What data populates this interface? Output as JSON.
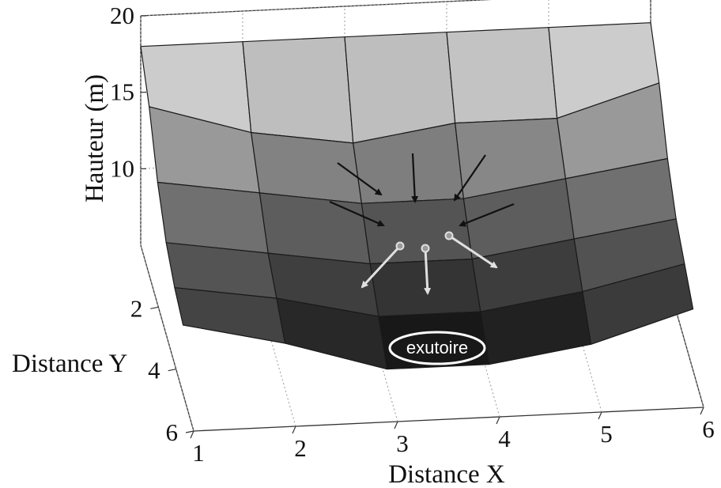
{
  "chart_data": {
    "type": "surface",
    "title": "",
    "xlabel": "Distance X",
    "ylabel": "Distance Y",
    "zlabel": "Hauteur (m)",
    "x_ticks": [
      "1",
      "2",
      "3",
      "4",
      "5",
      "6"
    ],
    "y_ticks": [
      "2",
      "4",
      "6"
    ],
    "z_ticks": [
      "10",
      "15",
      "20"
    ],
    "xlim": [
      1,
      6
    ],
    "ylim": [
      0,
      6
    ],
    "zlim": [
      5,
      20
    ],
    "grid": true,
    "x": [
      1,
      2,
      3,
      4,
      5,
      6
    ],
    "y": [
      1,
      2,
      3,
      4,
      5,
      6
    ],
    "z": [
      [
        18,
        18,
        18,
        18,
        18,
        18
      ],
      [
        16,
        14,
        13,
        14,
        14,
        16
      ],
      [
        13,
        12,
        11,
        11,
        12,
        13
      ],
      [
        11,
        10,
        9,
        9,
        10,
        11
      ],
      [
        10,
        9,
        7.5,
        7.5,
        8.5,
        10
      ],
      [
        9.5,
        8,
        6,
        6,
        7,
        9
      ]
    ],
    "annotations": {
      "outlet_label": "exutoire",
      "inflow_arrows": 5,
      "outflow_arrows": 3
    },
    "colors": {
      "face_light": "#e8e8e8",
      "face_dark": "#0a0a0a",
      "edge": "#1a1a1a",
      "inflow_arrow": "#111111",
      "outflow_arrow": "#e0e0e0"
    }
  }
}
